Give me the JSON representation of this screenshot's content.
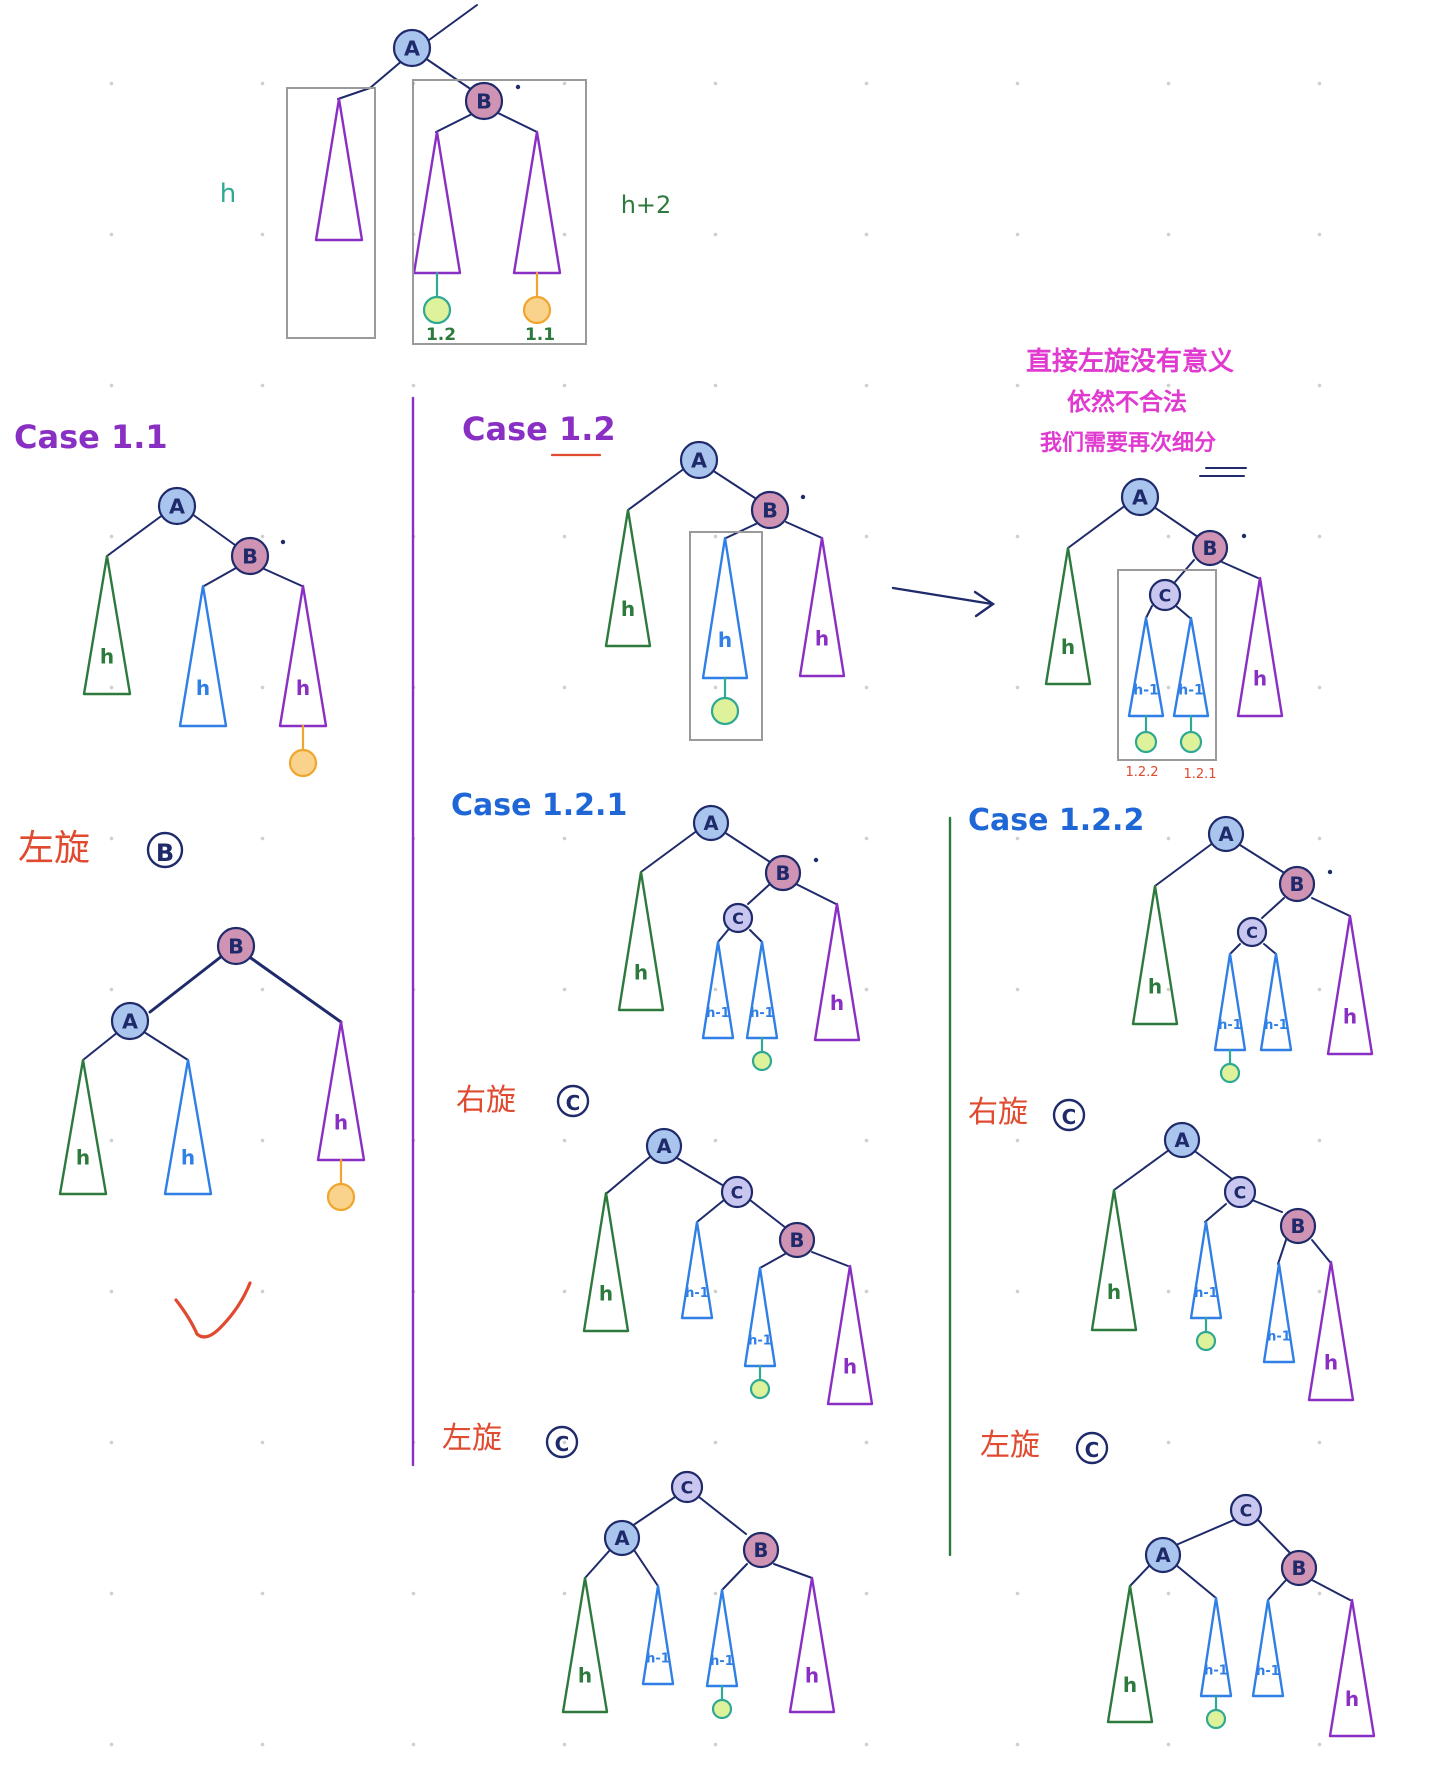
{
  "colors": {
    "line": "#1f2a6b",
    "node_blue_fill": "#a9c5ee",
    "node_pink_fill": "#cf93b3",
    "node_lav_fill": "#c9c6ef",
    "green": "#2e7a3e",
    "purple": "#8a2fc4",
    "blue": "#2f7fe6",
    "teal": "#2fa894",
    "orange": "#f0a62e",
    "leaf_green_fill": "#ddf29a",
    "leaf_orange_fill": "#f9d38b",
    "red": "#e04a2f",
    "magenta": "#e03ad0",
    "case_purple": "#8a2fc4",
    "case_blue": "#1f67d6",
    "gray": "#9a9a9a"
  },
  "nodes": {
    "A": "A",
    "B": "B",
    "C": "C"
  },
  "subtree_labels": {
    "h": "h",
    "h_minus_1": "h-1"
  },
  "top": {
    "left_height": "h",
    "right_height": "h+2",
    "leaf_labels": [
      "1.2",
      "1.1"
    ]
  },
  "cases": {
    "c11": "Case 1.1",
    "c12": "Case 1.2",
    "c121": "Case 1.2.1",
    "c122": "Case 1.2.2"
  },
  "rotations": {
    "rot_left_B": {
      "text": "左旋",
      "node": "B"
    },
    "rot_right_C_121": {
      "text": "右旋",
      "node": "C"
    },
    "rot_right_C_122": {
      "text": "右旋",
      "node": "C"
    },
    "rot_left_C_121": {
      "text": "左旋",
      "node": "C"
    },
    "rot_left_C_122": {
      "text": "左旋",
      "node": "C"
    }
  },
  "note_lines": [
    "直接左旋没有意义",
    "依然不合法",
    "我们需要再次细分"
  ],
  "sub_labels": [
    "1.2.2",
    "1.2.1"
  ]
}
